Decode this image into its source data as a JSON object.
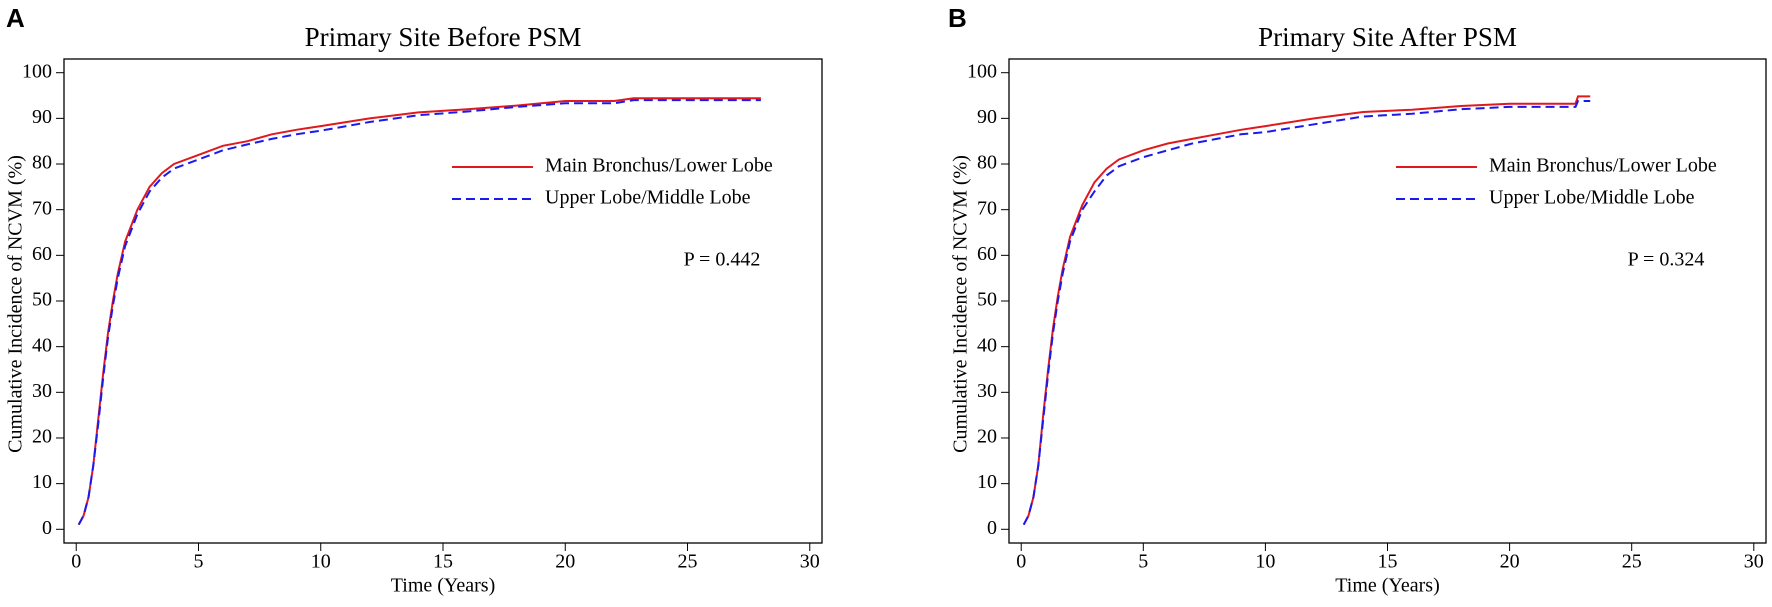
{
  "chart_data": [
    {
      "type": "line",
      "panel_label": "A",
      "title": "Primary Site Before PSM",
      "x_label": "Time (Years)",
      "y_label": "Cumulative Incidence of NCVM (%)",
      "annotation": "P = 0.442",
      "legend": "right",
      "x": [
        0.1,
        0.3,
        0.5,
        0.7,
        0.9,
        1.1,
        1.3,
        1.5,
        1.7,
        2,
        2.5,
        3,
        3.5,
        4,
        5,
        6,
        7,
        8,
        9,
        10,
        12,
        14,
        16,
        18,
        20,
        22,
        22.8,
        25,
        28
      ],
      "series": [
        {
          "name": "Main Bronchus/Lower Lobe",
          "color": "#e0191e",
          "dash": false,
          "values": [
            1,
            3,
            7,
            14,
            24,
            34,
            43,
            50,
            56,
            63,
            70,
            75,
            78,
            80,
            82,
            84,
            85,
            86.5,
            87.5,
            88.3,
            90,
            91.3,
            92,
            92.8,
            93.8,
            93.8,
            94.4,
            94.4,
            94.4
          ]
        },
        {
          "name": "Upper Lobe/Middle Lobe",
          "color": "#1a1aee",
          "dash": true,
          "values": [
            1,
            3,
            7,
            14,
            23,
            33,
            42,
            49,
            55,
            62,
            69,
            74,
            77,
            79,
            81,
            83,
            84.3,
            85.5,
            86.5,
            87.3,
            89.2,
            90.7,
            91.5,
            92.5,
            93.3,
            93.3,
            94,
            94,
            94
          ]
        }
      ],
      "xlim": [
        -0.5,
        30.5
      ],
      "xticks": [
        0,
        5,
        10,
        15,
        20,
        25,
        30
      ],
      "ylim": [
        -3,
        103
      ],
      "yticks": [
        0,
        10,
        20,
        30,
        40,
        50,
        60,
        70,
        80,
        90,
        100
      ]
    },
    {
      "type": "line",
      "panel_label": "B",
      "title": "Primary Site After PSM",
      "x_label": "Time (Years)",
      "y_label": "Cumulative Incidence of NCVM (%)",
      "annotation": "P = 0.324",
      "legend": "right",
      "x": [
        0.1,
        0.3,
        0.5,
        0.7,
        0.9,
        1.1,
        1.3,
        1.5,
        1.7,
        2,
        2.5,
        3,
        3.5,
        4,
        5,
        6,
        7,
        8,
        9,
        10,
        12,
        14,
        16,
        18,
        20,
        22.7,
        22.8,
        23.3
      ],
      "series": [
        {
          "name": "Main Bronchus/Lower Lobe",
          "color": "#e0191e",
          "dash": false,
          "values": [
            1,
            3,
            7,
            14,
            25,
            35,
            44,
            51,
            57,
            64,
            71,
            76,
            79,
            81,
            83,
            84.5,
            85.5,
            86.5,
            87.5,
            88.3,
            90,
            91.4,
            91.9,
            92.7,
            93.2,
            93.2,
            94.8,
            94.8
          ]
        },
        {
          "name": "Upper Lobe/Middle Lobe",
          "color": "#1a1aee",
          "dash": true,
          "values": [
            1,
            3,
            7,
            14,
            24,
            34,
            43,
            50,
            56,
            63,
            70,
            74,
            77.5,
            79.5,
            81.5,
            83,
            84.5,
            85.5,
            86.5,
            87,
            88.7,
            90.4,
            91,
            92,
            92.5,
            92.5,
            93.8,
            93.8
          ]
        }
      ],
      "xlim": [
        -0.5,
        30.5
      ],
      "xticks": [
        0,
        5,
        10,
        15,
        20,
        25,
        30
      ],
      "ylim": [
        -3,
        103
      ],
      "yticks": [
        0,
        10,
        20,
        30,
        40,
        50,
        60,
        70,
        80,
        90,
        100
      ]
    }
  ]
}
